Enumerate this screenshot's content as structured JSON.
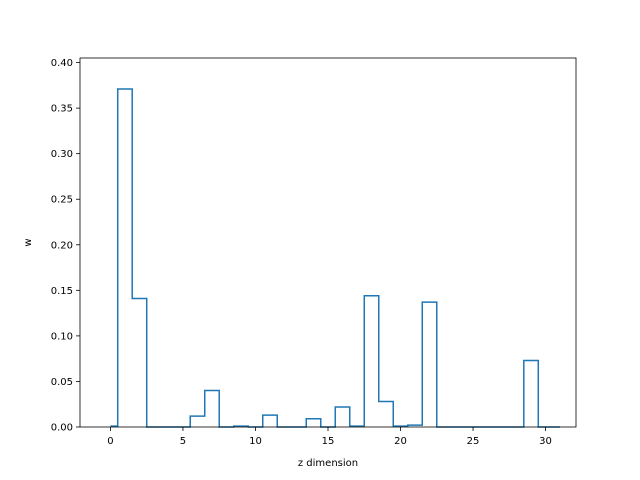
{
  "chart_data": {
    "type": "line",
    "style": "step-histogram",
    "title": "",
    "xlabel": "z dimension",
    "ylabel": "w",
    "xlim": [
      -2.1,
      32.1
    ],
    "ylim": [
      0,
      0.405
    ],
    "xticks": [
      0,
      5,
      10,
      15,
      20,
      25,
      30
    ],
    "yticks": [
      0.0,
      0.05,
      0.1,
      0.15,
      0.2,
      0.25,
      0.3,
      0.35,
      0.4
    ],
    "ytick_labels": [
      "0.00",
      "0.05",
      "0.10",
      "0.15",
      "0.20",
      "0.25",
      "0.30",
      "0.35",
      "0.40"
    ],
    "grid": false,
    "series": [
      {
        "color": "#1f77b4",
        "bin_centers": [
          0,
          1,
          2,
          3,
          4,
          5,
          6,
          7,
          8,
          9,
          10,
          11,
          12,
          13,
          14,
          15,
          16,
          17,
          18,
          19,
          20,
          21,
          22,
          23,
          24,
          25,
          26,
          27,
          28,
          29,
          30
        ],
        "values": [
          0.001,
          0.371,
          0.141,
          0.0,
          0.0,
          0.0,
          0.012,
          0.04,
          0.0,
          0.001,
          0.0,
          0.013,
          0.0,
          0.0,
          0.009,
          0.0,
          0.022,
          0.001,
          0.144,
          0.028,
          0.001,
          0.002,
          0.137,
          0.0,
          0.0,
          0.0,
          0.0,
          0.0,
          0.0,
          0.073,
          0.0
        ],
        "x_end": 31
      }
    ]
  }
}
